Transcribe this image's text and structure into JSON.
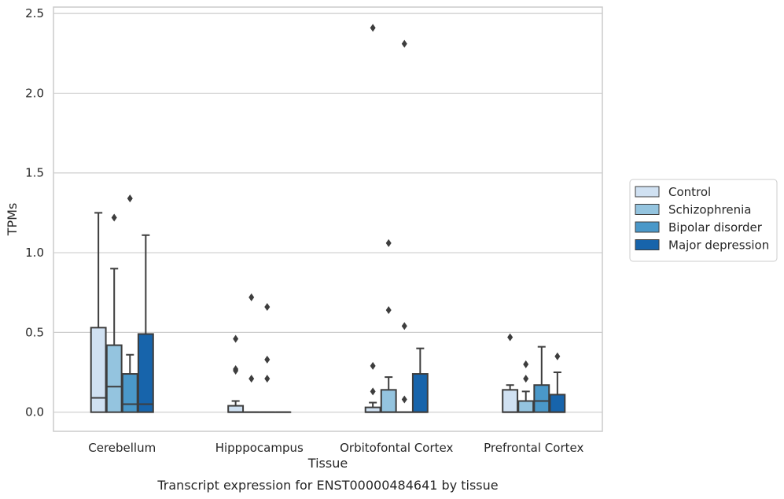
{
  "chart_data": {
    "type": "boxplot",
    "xlabel": "Tissue",
    "ylabel": "TPMs",
    "caption": "Transcript expression for ENST00000484641 by tissue",
    "ylim": [
      -0.12,
      2.54
    ],
    "yticks": [
      0.0,
      0.5,
      1.0,
      1.5,
      2.0,
      2.5
    ],
    "ytick_labels": [
      "0.0",
      "0.5",
      "1.0",
      "1.5",
      "2.0",
      "2.5"
    ],
    "grid": "horizontal",
    "legend_position": "right",
    "categories": [
      "Cerebellum",
      "Hipppocampus",
      "Orbitofontal Cortex",
      "Prefrontal Cortex"
    ],
    "series": [
      {
        "name": "Control",
        "color": "#d0e1f2",
        "boxes": [
          {
            "q1": 0.0,
            "median": 0.09,
            "q3": 0.53,
            "whisker_low": 0.0,
            "whisker_high": 1.25,
            "outliers": []
          },
          {
            "q1": 0.0,
            "median": 0.0,
            "q3": 0.04,
            "whisker_low": 0.0,
            "whisker_high": 0.07,
            "outliers": [
              0.46,
              0.27,
              0.26
            ]
          },
          {
            "q1": 0.0,
            "median": 0.0,
            "q3": 0.03,
            "whisker_low": 0.0,
            "whisker_high": 0.06,
            "outliers": [
              2.41,
              0.29,
              0.13
            ]
          },
          {
            "q1": 0.0,
            "median": 0.0,
            "q3": 0.14,
            "whisker_low": 0.0,
            "whisker_high": 0.17,
            "outliers": [
              0.47
            ]
          }
        ]
      },
      {
        "name": "Schizophrenia",
        "color": "#94c4df",
        "boxes": [
          {
            "q1": 0.0,
            "median": 0.16,
            "q3": 0.42,
            "whisker_low": 0.0,
            "whisker_high": 0.9,
            "outliers": [
              1.22
            ]
          },
          {
            "q1": 0.0,
            "median": 0.0,
            "q3": 0.0,
            "whisker_low": 0.0,
            "whisker_high": 0.0,
            "outliers": [
              0.72,
              0.21
            ]
          },
          {
            "q1": 0.0,
            "median": 0.0,
            "q3": 0.14,
            "whisker_low": 0.0,
            "whisker_high": 0.22,
            "outliers": [
              1.06,
              0.64
            ]
          },
          {
            "q1": 0.0,
            "median": 0.0,
            "q3": 0.07,
            "whisker_low": 0.0,
            "whisker_high": 0.13,
            "outliers": [
              0.3,
              0.21
            ]
          }
        ]
      },
      {
        "name": "Bipolar disorder",
        "color": "#4a98c9",
        "boxes": [
          {
            "q1": 0.0,
            "median": 0.05,
            "q3": 0.24,
            "whisker_low": 0.0,
            "whisker_high": 0.36,
            "outliers": [
              1.34
            ]
          },
          {
            "q1": 0.0,
            "median": 0.0,
            "q3": 0.0,
            "whisker_low": 0.0,
            "whisker_high": 0.0,
            "outliers": [
              0.66,
              0.33,
              0.21
            ]
          },
          {
            "q1": 0.0,
            "median": 0.0,
            "q3": 0.0,
            "whisker_low": 0.0,
            "whisker_high": 0.0,
            "outliers": [
              2.31,
              0.54,
              0.08
            ]
          },
          {
            "q1": 0.0,
            "median": 0.07,
            "q3": 0.17,
            "whisker_low": 0.0,
            "whisker_high": 0.41,
            "outliers": []
          }
        ]
      },
      {
        "name": "Major depression",
        "color": "#1764ab",
        "boxes": [
          {
            "q1": 0.0,
            "median": 0.05,
            "q3": 0.49,
            "whisker_low": 0.0,
            "whisker_high": 1.11,
            "outliers": []
          },
          {
            "q1": 0.0,
            "median": 0.0,
            "q3": 0.0,
            "whisker_low": 0.0,
            "whisker_high": 0.0,
            "outliers": []
          },
          {
            "q1": 0.0,
            "median": 0.0,
            "q3": 0.24,
            "whisker_low": 0.0,
            "whisker_high": 0.4,
            "outliers": []
          },
          {
            "q1": 0.0,
            "median": 0.0,
            "q3": 0.11,
            "whisker_low": 0.0,
            "whisker_high": 0.25,
            "outliers": [
              0.35
            ]
          }
        ]
      }
    ]
  }
}
